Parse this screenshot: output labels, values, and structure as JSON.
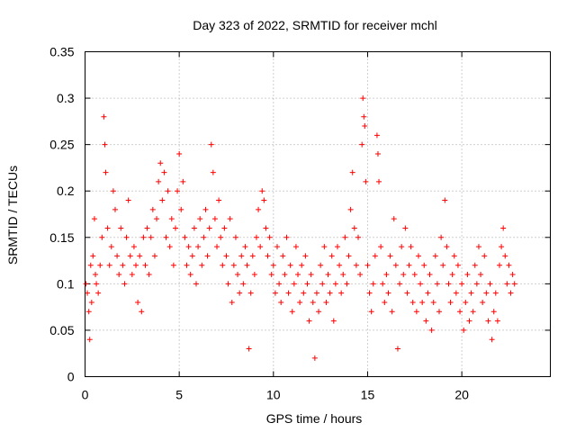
{
  "chart_data": {
    "type": "scatter",
    "title": "Day 323 of 2022, SRMTID for receiver mchl",
    "xlabel": "GPS time / hours",
    "ylabel": "SRMTID / TECUs",
    "xlim": [
      0,
      24.7
    ],
    "ylim": [
      0,
      0.35
    ],
    "xticks": [
      0,
      5,
      10,
      15,
      20
    ],
    "xtick_labels": [
      "0",
      "5",
      "10",
      "15",
      "20"
    ],
    "yticks": [
      0,
      0.05,
      0.1,
      0.15,
      0.2,
      0.25,
      0.3,
      0.35
    ],
    "ytick_labels": [
      "0",
      "0.05",
      "0.1",
      "0.15",
      "0.2",
      "0.25",
      "0.3",
      "0.35"
    ],
    "grid": true,
    "marker": "plus",
    "color": "#ff0000",
    "series": [
      {
        "name": "SRMTID",
        "points": [
          [
            0.05,
            0.1
          ],
          [
            0.12,
            0.09
          ],
          [
            0.2,
            0.07
          ],
          [
            0.25,
            0.04
          ],
          [
            0.3,
            0.12
          ],
          [
            0.35,
            0.08
          ],
          [
            0.42,
            0.13
          ],
          [
            0.5,
            0.17
          ],
          [
            0.55,
            0.11
          ],
          [
            0.6,
            0.1
          ],
          [
            0.7,
            0.09
          ],
          [
            0.8,
            0.12
          ],
          [
            0.9,
            0.15
          ],
          [
            1.0,
            0.28
          ],
          [
            1.05,
            0.25
          ],
          [
            1.1,
            0.22
          ],
          [
            1.2,
            0.16
          ],
          [
            1.3,
            0.12
          ],
          [
            1.4,
            0.14
          ],
          [
            1.5,
            0.2
          ],
          [
            1.6,
            0.18
          ],
          [
            1.7,
            0.13
          ],
          [
            1.8,
            0.11
          ],
          [
            1.9,
            0.16
          ],
          [
            2.0,
            0.12
          ],
          [
            2.1,
            0.1
          ],
          [
            2.2,
            0.15
          ],
          [
            2.3,
            0.19
          ],
          [
            2.4,
            0.13
          ],
          [
            2.5,
            0.11
          ],
          [
            2.6,
            0.14
          ],
          [
            2.7,
            0.12
          ],
          [
            2.8,
            0.08
          ],
          [
            2.9,
            0.13
          ],
          [
            3.0,
            0.07
          ],
          [
            3.1,
            0.15
          ],
          [
            3.2,
            0.12
          ],
          [
            3.3,
            0.16
          ],
          [
            3.4,
            0.11
          ],
          [
            3.5,
            0.15
          ],
          [
            3.6,
            0.18
          ],
          [
            3.7,
            0.13
          ],
          [
            3.8,
            0.17
          ],
          [
            3.9,
            0.21
          ],
          [
            4.0,
            0.23
          ],
          [
            4.1,
            0.19
          ],
          [
            4.2,
            0.22
          ],
          [
            4.3,
            0.15
          ],
          [
            4.4,
            0.2
          ],
          [
            4.5,
            0.14
          ],
          [
            4.6,
            0.17
          ],
          [
            4.7,
            0.12
          ],
          [
            4.8,
            0.16
          ],
          [
            4.9,
            0.2
          ],
          [
            5.0,
            0.24
          ],
          [
            5.1,
            0.18
          ],
          [
            5.2,
            0.21
          ],
          [
            5.3,
            0.15
          ],
          [
            5.4,
            0.12
          ],
          [
            5.5,
            0.14
          ],
          [
            5.6,
            0.11
          ],
          [
            5.7,
            0.13
          ],
          [
            5.8,
            0.16
          ],
          [
            5.9,
            0.1
          ],
          [
            6.0,
            0.14
          ],
          [
            6.1,
            0.17
          ],
          [
            6.2,
            0.12
          ],
          [
            6.3,
            0.15
          ],
          [
            6.4,
            0.18
          ],
          [
            6.5,
            0.13
          ],
          [
            6.6,
            0.16
          ],
          [
            6.7,
            0.25
          ],
          [
            6.8,
            0.22
          ],
          [
            6.9,
            0.17
          ],
          [
            7.0,
            0.14
          ],
          [
            7.1,
            0.19
          ],
          [
            7.2,
            0.15
          ],
          [
            7.3,
            0.12
          ],
          [
            7.4,
            0.16
          ],
          [
            7.5,
            0.13
          ],
          [
            7.6,
            0.1
          ],
          [
            7.7,
            0.17
          ],
          [
            7.8,
            0.08
          ],
          [
            7.9,
            0.12
          ],
          [
            8.0,
            0.15
          ],
          [
            8.1,
            0.11
          ],
          [
            8.2,
            0.09
          ],
          [
            8.3,
            0.13
          ],
          [
            8.4,
            0.1
          ],
          [
            8.5,
            0.14
          ],
          [
            8.6,
            0.12
          ],
          [
            8.7,
            0.03
          ],
          [
            8.8,
            0.09
          ],
          [
            8.9,
            0.13
          ],
          [
            9.0,
            0.11
          ],
          [
            9.1,
            0.15
          ],
          [
            9.2,
            0.18
          ],
          [
            9.3,
            0.14
          ],
          [
            9.4,
            0.2
          ],
          [
            9.5,
            0.19
          ],
          [
            9.6,
            0.16
          ],
          [
            9.7,
            0.13
          ],
          [
            9.8,
            0.15
          ],
          [
            9.9,
            0.11
          ],
          [
            10.0,
            0.12
          ],
          [
            10.1,
            0.09
          ],
          [
            10.2,
            0.14
          ],
          [
            10.3,
            0.1
          ],
          [
            10.4,
            0.08
          ],
          [
            10.5,
            0.13
          ],
          [
            10.6,
            0.11
          ],
          [
            10.7,
            0.15
          ],
          [
            10.8,
            0.09
          ],
          [
            10.9,
            0.12
          ],
          [
            11.0,
            0.07
          ],
          [
            11.1,
            0.1
          ],
          [
            11.2,
            0.14
          ],
          [
            11.3,
            0.11
          ],
          [
            11.4,
            0.08
          ],
          [
            11.5,
            0.12
          ],
          [
            11.6,
            0.09
          ],
          [
            11.7,
            0.13
          ],
          [
            11.8,
            0.1
          ],
          [
            11.9,
            0.06
          ],
          [
            12.0,
            0.11
          ],
          [
            12.1,
            0.08
          ],
          [
            12.2,
            0.02
          ],
          [
            12.3,
            0.09
          ],
          [
            12.4,
            0.07
          ],
          [
            12.5,
            0.12
          ],
          [
            12.6,
            0.1
          ],
          [
            12.7,
            0.14
          ],
          [
            12.8,
            0.08
          ],
          [
            12.9,
            0.11
          ],
          [
            13.0,
            0.09
          ],
          [
            13.1,
            0.13
          ],
          [
            13.2,
            0.06
          ],
          [
            13.3,
            0.1
          ],
          [
            13.4,
            0.14
          ],
          [
            13.5,
            0.12
          ],
          [
            13.6,
            0.09
          ],
          [
            13.7,
            0.11
          ],
          [
            13.8,
            0.15
          ],
          [
            13.9,
            0.1
          ],
          [
            14.0,
            0.13
          ],
          [
            14.1,
            0.18
          ],
          [
            14.2,
            0.22
          ],
          [
            14.3,
            0.16
          ],
          [
            14.4,
            0.12
          ],
          [
            14.5,
            0.15
          ],
          [
            14.6,
            0.11
          ],
          [
            14.7,
            0.25
          ],
          [
            14.75,
            0.3
          ],
          [
            14.8,
            0.28
          ],
          [
            14.85,
            0.27
          ],
          [
            14.9,
            0.21
          ],
          [
            15.0,
            0.12
          ],
          [
            15.1,
            0.09
          ],
          [
            15.2,
            0.07
          ],
          [
            15.3,
            0.1
          ],
          [
            15.4,
            0.13
          ],
          [
            15.5,
            0.26
          ],
          [
            15.55,
            0.24
          ],
          [
            15.6,
            0.21
          ],
          [
            15.7,
            0.14
          ],
          [
            15.8,
            0.1
          ],
          [
            15.9,
            0.08
          ],
          [
            16.0,
            0.11
          ],
          [
            16.1,
            0.09
          ],
          [
            16.2,
            0.13
          ],
          [
            16.3,
            0.07
          ],
          [
            16.4,
            0.17
          ],
          [
            16.5,
            0.12
          ],
          [
            16.6,
            0.03
          ],
          [
            16.7,
            0.1
          ],
          [
            16.8,
            0.14
          ],
          [
            16.9,
            0.11
          ],
          [
            17.0,
            0.16
          ],
          [
            17.1,
            0.09
          ],
          [
            17.2,
            0.12
          ],
          [
            17.3,
            0.14
          ],
          [
            17.4,
            0.08
          ],
          [
            17.5,
            0.11
          ],
          [
            17.6,
            0.07
          ],
          [
            17.7,
            0.13
          ],
          [
            17.8,
            0.1
          ],
          [
            17.9,
            0.08
          ],
          [
            18.0,
            0.12
          ],
          [
            18.1,
            0.06
          ],
          [
            18.2,
            0.09
          ],
          [
            18.3,
            0.11
          ],
          [
            18.4,
            0.05
          ],
          [
            18.5,
            0.08
          ],
          [
            18.6,
            0.13
          ],
          [
            18.7,
            0.1
          ],
          [
            18.8,
            0.07
          ],
          [
            18.9,
            0.15
          ],
          [
            19.0,
            0.12
          ],
          [
            19.1,
            0.19
          ],
          [
            19.2,
            0.14
          ],
          [
            19.3,
            0.1
          ],
          [
            19.4,
            0.08
          ],
          [
            19.5,
            0.11
          ],
          [
            19.6,
            0.13
          ],
          [
            19.7,
            0.09
          ],
          [
            19.8,
            0.12
          ],
          [
            19.9,
            0.07
          ],
          [
            20.0,
            0.1
          ],
          [
            20.1,
            0.05
          ],
          [
            20.2,
            0.08
          ],
          [
            20.3,
            0.11
          ],
          [
            20.4,
            0.06
          ],
          [
            20.5,
            0.09
          ],
          [
            20.6,
            0.07
          ],
          [
            20.7,
            0.12
          ],
          [
            20.8,
            0.1
          ],
          [
            20.9,
            0.14
          ],
          [
            21.0,
            0.11
          ],
          [
            21.1,
            0.08
          ],
          [
            21.2,
            0.13
          ],
          [
            21.3,
            0.09
          ],
          [
            21.4,
            0.06
          ],
          [
            21.5,
            0.1
          ],
          [
            21.6,
            0.04
          ],
          [
            21.7,
            0.07
          ],
          [
            21.8,
            0.09
          ],
          [
            21.9,
            0.06
          ],
          [
            22.0,
            0.12
          ],
          [
            22.1,
            0.14
          ],
          [
            22.2,
            0.16
          ],
          [
            22.3,
            0.13
          ],
          [
            22.4,
            0.1
          ],
          [
            22.5,
            0.12
          ],
          [
            22.6,
            0.09
          ],
          [
            22.7,
            0.11
          ],
          [
            22.8,
            0.1
          ]
        ]
      }
    ]
  }
}
